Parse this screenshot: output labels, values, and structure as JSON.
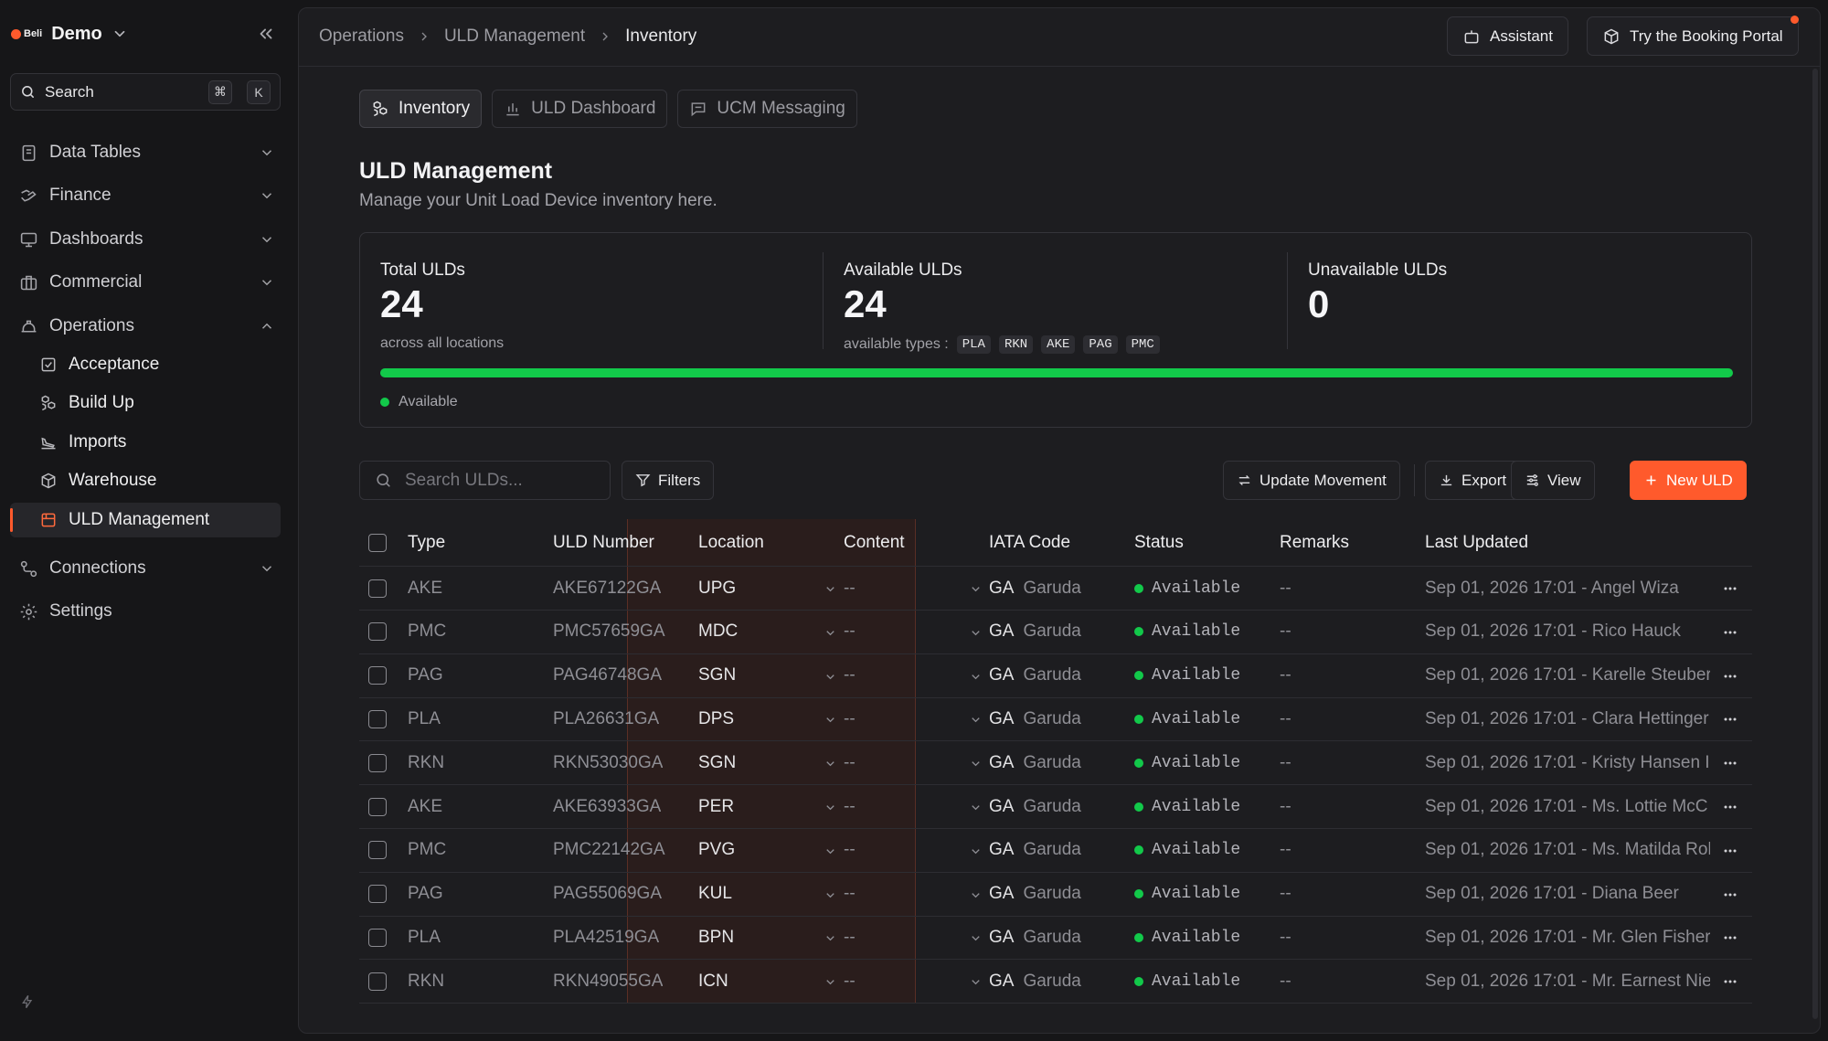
{
  "workspace": {
    "logo_text": "Beli",
    "name": "Demo"
  },
  "search": {
    "label": "Search",
    "kbd1": "⌘",
    "kbd2": "K"
  },
  "nav": {
    "data_tables": "Data Tables",
    "finance": "Finance",
    "dashboards": "Dashboards",
    "commercial": "Commercial",
    "operations": "Operations",
    "sub": [
      "Acceptance",
      "Build Up",
      "Imports",
      "Warehouse",
      "ULD Management"
    ],
    "connections": "Connections",
    "settings": "Settings"
  },
  "breadcrumb": [
    "Operations",
    "ULD Management",
    "Inventory"
  ],
  "header": {
    "assistant": "Assistant",
    "booking": "Try the Booking Portal"
  },
  "tabs": [
    "Inventory",
    "ULD Dashboard",
    "UCM Messaging"
  ],
  "page": {
    "title": "ULD Management",
    "subtitle": "Manage your Unit Load Device inventory here."
  },
  "stats": {
    "total": {
      "label": "Total ULDs",
      "value": "24",
      "foot": "across all locations"
    },
    "available": {
      "label": "Available ULDs",
      "value": "24",
      "foot": "available types :",
      "types": [
        "PLA",
        "RKN",
        "AKE",
        "PAG",
        "PMC"
      ]
    },
    "unavailable": {
      "label": "Unavailable ULDs",
      "value": "0"
    },
    "available_fraction": 1.0,
    "legend": "Available",
    "accent": "#12c94a"
  },
  "toolbar": {
    "search_placeholder": "Search ULDs...",
    "filters": "Filters",
    "update": "Update Movement",
    "export": "Export",
    "view": "View",
    "new": "New ULD",
    "primary_color": "#ff5a2c"
  },
  "table": {
    "headers": [
      "Type",
      "ULD Number",
      "Location",
      "Content",
      "IATA Code",
      "Status",
      "Remarks",
      "Last Updated"
    ],
    "rows": [
      {
        "type": "AKE",
        "number": "AKE67122GA",
        "location": "UPG",
        "content": "--",
        "iata": "GA",
        "airline": "Garuda",
        "status": "Available",
        "remarks": "--",
        "updated": "Sep 01, 2026 17:01 - Angel Wiza"
      },
      {
        "type": "PMC",
        "number": "PMC57659GA",
        "location": "MDC",
        "content": "--",
        "iata": "GA",
        "airline": "Garuda",
        "status": "Available",
        "remarks": "--",
        "updated": "Sep 01, 2026 17:01 - Rico Hauck"
      },
      {
        "type": "PAG",
        "number": "PAG46748GA",
        "location": "SGN",
        "content": "--",
        "iata": "GA",
        "airline": "Garuda",
        "status": "Available",
        "remarks": "--",
        "updated": "Sep 01, 2026 17:01 - Karelle Steuber"
      },
      {
        "type": "PLA",
        "number": "PLA26631GA",
        "location": "DPS",
        "content": "--",
        "iata": "GA",
        "airline": "Garuda",
        "status": "Available",
        "remarks": "--",
        "updated": "Sep 01, 2026 17:01 - Clara Hettinger"
      },
      {
        "type": "RKN",
        "number": "RKN53030GA",
        "location": "SGN",
        "content": "--",
        "iata": "GA",
        "airline": "Garuda",
        "status": "Available",
        "remarks": "--",
        "updated": "Sep 01, 2026 17:01 - Kristy Hansen I"
      },
      {
        "type": "AKE",
        "number": "AKE63933GA",
        "location": "PER",
        "content": "--",
        "iata": "GA",
        "airline": "Garuda",
        "status": "Available",
        "remarks": "--",
        "updated": "Sep 01, 2026 17:01 - Ms. Lottie McC"
      },
      {
        "type": "PMC",
        "number": "PMC22142GA",
        "location": "PVG",
        "content": "--",
        "iata": "GA",
        "airline": "Garuda",
        "status": "Available",
        "remarks": "--",
        "updated": "Sep 01, 2026 17:01 - Ms. Matilda Rol"
      },
      {
        "type": "PAG",
        "number": "PAG55069GA",
        "location": "KUL",
        "content": "--",
        "iata": "GA",
        "airline": "Garuda",
        "status": "Available",
        "remarks": "--",
        "updated": "Sep 01, 2026 17:01 - Diana Beer"
      },
      {
        "type": "PLA",
        "number": "PLA42519GA",
        "location": "BPN",
        "content": "--",
        "iata": "GA",
        "airline": "Garuda",
        "status": "Available",
        "remarks": "--",
        "updated": "Sep 01, 2026 17:01 - Mr. Glen Fisher"
      },
      {
        "type": "RKN",
        "number": "RKN49055GA",
        "location": "ICN",
        "content": "--",
        "iata": "GA",
        "airline": "Garuda",
        "status": "Available",
        "remarks": "--",
        "updated": "Sep 01, 2026 17:01 - Mr. Earnest Nie"
      }
    ]
  }
}
